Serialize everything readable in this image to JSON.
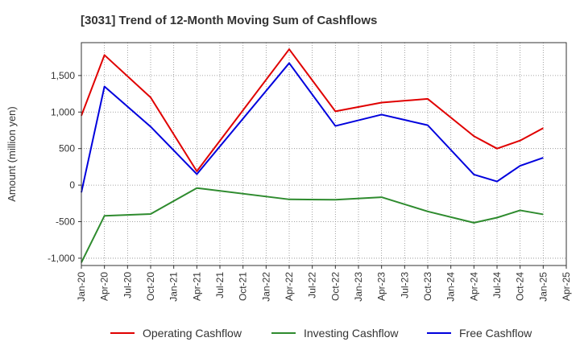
{
  "chart_data": {
    "type": "line",
    "title": "[3031]  Trend of 12-Month Moving Sum of Cashflows",
    "xlabel": "",
    "ylabel": "Amount (million yen)",
    "x": [
      "Jan-20",
      "Apr-20",
      "Jul-20",
      "Oct-20",
      "Jan-21",
      "Apr-21",
      "Jul-21",
      "Oct-21",
      "Jan-22",
      "Apr-22",
      "Jul-22",
      "Oct-22",
      "Jan-23",
      "Apr-23",
      "Jul-23",
      "Oct-23",
      "Jan-24",
      "Apr-24",
      "Jul-24",
      "Oct-24",
      "Jan-25",
      "Apr-25"
    ],
    "ylim": [
      -1100,
      1950
    ],
    "yticks": [
      -1000,
      -500,
      0,
      500,
      1000,
      1500
    ],
    "ytick_labels": [
      "-1,000",
      "-500",
      "0",
      "500",
      "1,000",
      "1,500"
    ],
    "grid": true,
    "legend_position": "bottom",
    "series": [
      {
        "name": "Operating Cashflow",
        "color": "#e00000",
        "points": [
          [
            "Jan-20",
            950
          ],
          [
            "Apr-20",
            1780
          ],
          [
            "Oct-20",
            1200
          ],
          [
            "Apr-21",
            190
          ],
          [
            "Apr-22",
            1860
          ],
          [
            "Oct-22",
            1010
          ],
          [
            "Apr-23",
            1130
          ],
          [
            "Oct-23",
            1180
          ],
          [
            "Apr-24",
            670
          ],
          [
            "Jul-24",
            500
          ],
          [
            "Oct-24",
            610
          ],
          [
            "Jan-25",
            780
          ]
        ]
      },
      {
        "name": "Investing Cashflow",
        "color": "#2e8b2e",
        "points": [
          [
            "Jan-20",
            -1060
          ],
          [
            "Apr-20",
            -420
          ],
          [
            "Oct-20",
            -395
          ],
          [
            "Apr-21",
            -40
          ],
          [
            "Apr-22",
            -195
          ],
          [
            "Oct-22",
            -200
          ],
          [
            "Apr-23",
            -165
          ],
          [
            "Oct-23",
            -360
          ],
          [
            "Apr-24",
            -515
          ],
          [
            "Jul-24",
            -445
          ],
          [
            "Oct-24",
            -345
          ],
          [
            "Jan-25",
            -400
          ]
        ]
      },
      {
        "name": "Free Cashflow",
        "color": "#0000dd",
        "points": [
          [
            "Jan-20",
            -100
          ],
          [
            "Apr-20",
            1350
          ],
          [
            "Oct-20",
            800
          ],
          [
            "Apr-21",
            150
          ],
          [
            "Apr-22",
            1670
          ],
          [
            "Oct-22",
            810
          ],
          [
            "Apr-23",
            965
          ],
          [
            "Oct-23",
            820
          ],
          [
            "Apr-24",
            145
          ],
          [
            "Jul-24",
            50
          ],
          [
            "Oct-24",
            265
          ],
          [
            "Jan-25",
            375
          ]
        ]
      }
    ]
  }
}
